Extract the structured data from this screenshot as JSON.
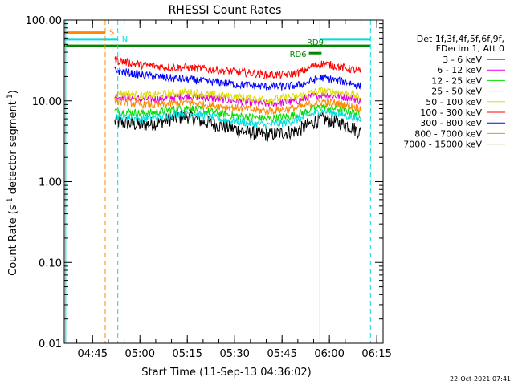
{
  "chart_data": {
    "type": "line",
    "title": "RHESSI Count Rates",
    "xlabel": "Start Time (11-Sep-13 04:36:02)",
    "ylabel_main": "Count Rate (s",
    "ylabel_sup1": "-1",
    "ylabel_mid": " detector segment",
    "ylabel_sup2": "-1",
    "ylabel_end": ")",
    "yscale": "log",
    "ylim": [
      0.01,
      100
    ],
    "xlim": [
      "04:36:02",
      "06:17:00"
    ],
    "x_ticks": [
      {
        "label": "04:45",
        "t": "04:45"
      },
      {
        "label": "05:00",
        "t": "05:00"
      },
      {
        "label": "05:15",
        "t": "05:15"
      },
      {
        "label": "05:30",
        "t": "05:30"
      },
      {
        "label": "05:45",
        "t": "05:45"
      },
      {
        "label": "06:00",
        "t": "06:00"
      },
      {
        "label": "06:15",
        "t": "06:15"
      }
    ],
    "y_ticks": [
      {
        "label": "100.00",
        "v": 100
      },
      {
        "label": "10.00",
        "v": 10
      },
      {
        "label": "1.00",
        "v": 1
      },
      {
        "label": "0.10",
        "v": 0.1
      },
      {
        "label": "0.01",
        "v": 0.01
      }
    ],
    "legend_header": [
      "Det 1f,3f,4f,5f,6f,9f,",
      "FDecim 1, Att 0"
    ],
    "legend_placement": "right",
    "series": [
      {
        "name": "3 - 6 keV",
        "color": "#000000",
        "x": [
          "04:52",
          "04:56",
          "05:00",
          "05:05",
          "05:10",
          "05:15",
          "05:20",
          "05:25",
          "05:30",
          "05:35",
          "05:40",
          "05:45",
          "05:50",
          "05:55",
          "05:58",
          "06:02",
          "06:06",
          "06:10"
        ],
        "values": [
          5.5,
          5.3,
          5.0,
          5.3,
          6.0,
          6.5,
          5.5,
          5.0,
          4.5,
          4.0,
          3.8,
          4.0,
          4.3,
          5.5,
          6.0,
          5.5,
          5.0,
          4.0
        ]
      },
      {
        "name": "6 - 12 keV",
        "color": "#dd00dd",
        "x": [
          "04:52",
          "04:56",
          "05:00",
          "05:05",
          "05:10",
          "05:15",
          "05:20",
          "05:25",
          "05:30",
          "05:35",
          "05:40",
          "05:45",
          "05:50",
          "05:55",
          "05:58",
          "06:02",
          "06:06",
          "06:10"
        ],
        "values": [
          11.5,
          11,
          10.5,
          10.5,
          11,
          11.5,
          11,
          10.5,
          10,
          9.5,
          9.2,
          9.5,
          10,
          11.5,
          12,
          11.5,
          11,
          10
        ]
      },
      {
        "name": "12 - 25 keV",
        "color": "#00dd00",
        "x": [
          "04:52",
          "04:56",
          "05:00",
          "05:05",
          "05:10",
          "05:15",
          "05:20",
          "05:25",
          "05:30",
          "05:35",
          "05:40",
          "05:45",
          "05:50",
          "05:55",
          "05:58",
          "06:02",
          "06:06",
          "06:10"
        ],
        "values": [
          7.5,
          7.3,
          7.0,
          7.2,
          7.8,
          8.2,
          7.6,
          7.0,
          6.6,
          6.3,
          6.0,
          6.3,
          6.8,
          8.0,
          8.5,
          8.0,
          7.5,
          6.8
        ]
      },
      {
        "name": "25 - 50 keV",
        "color": "#00dddd",
        "x": [
          "04:52",
          "04:56",
          "05:00",
          "05:05",
          "05:10",
          "05:15",
          "05:20",
          "05:25",
          "05:30",
          "05:35",
          "05:40",
          "05:45",
          "05:50",
          "05:55",
          "05:58",
          "06:02",
          "06:06",
          "06:10"
        ],
        "values": [
          6.5,
          6.3,
          6.0,
          6.2,
          6.8,
          7.2,
          6.6,
          6.0,
          5.6,
          5.3,
          5.0,
          5.3,
          5.8,
          7.0,
          7.5,
          7.0,
          6.5,
          5.8
        ]
      },
      {
        "name": "50 - 100 keV",
        "color": "#dddd00",
        "x": [
          "04:52",
          "04:56",
          "05:00",
          "05:05",
          "05:10",
          "05:15",
          "05:20",
          "05:25",
          "05:30",
          "05:35",
          "05:40",
          "05:45",
          "05:50",
          "05:55",
          "05:58",
          "06:02",
          "06:06",
          "06:10"
        ],
        "values": [
          12.5,
          12.2,
          11.8,
          11.8,
          12.3,
          12.8,
          12.2,
          11.6,
          11.2,
          10.8,
          10.4,
          10.8,
          11.3,
          12.8,
          13.3,
          12.8,
          12.2,
          11.2
        ]
      },
      {
        "name": "100 - 300 keV",
        "color": "#ff0000",
        "x": [
          "04:52",
          "04:56",
          "05:00",
          "05:05",
          "05:10",
          "05:15",
          "05:20",
          "05:25",
          "05:30",
          "05:35",
          "05:40",
          "05:45",
          "05:50",
          "05:55",
          "05:58",
          "06:02",
          "06:06",
          "06:10"
        ],
        "values": [
          32,
          30,
          28,
          27,
          26,
          26,
          25,
          24,
          23,
          22,
          21,
          21,
          22,
          27,
          29,
          27,
          25,
          23
        ]
      },
      {
        "name": "300 - 800 keV",
        "color": "#0000ff",
        "x": [
          "04:52",
          "04:56",
          "05:00",
          "05:05",
          "05:10",
          "05:15",
          "05:20",
          "05:25",
          "05:30",
          "05:35",
          "05:40",
          "05:45",
          "05:50",
          "05:55",
          "05:58",
          "06:02",
          "06:06",
          "06:10"
        ],
        "values": [
          24,
          22.5,
          21,
          20,
          19,
          18.5,
          17.5,
          17,
          16,
          15.5,
          15,
          15,
          15.5,
          18,
          19.5,
          18,
          17,
          15
        ]
      },
      {
        "name": "800 - 7000 keV",
        "color": "#ff8800",
        "x": [
          "04:52",
          "04:56",
          "05:00",
          "05:05",
          "05:10",
          "05:15",
          "05:20",
          "05:25",
          "05:30",
          "05:35",
          "05:40",
          "05:45",
          "05:50",
          "05:55",
          "05:58",
          "06:02",
          "06:06",
          "06:10"
        ],
        "values": [
          10,
          9.6,
          9.0,
          8.8,
          9.2,
          9.6,
          9.0,
          8.6,
          8.2,
          7.8,
          7.5,
          7.8,
          8.2,
          9.3,
          9.8,
          9.3,
          8.8,
          8.0
        ]
      },
      {
        "name": "7000 - 15000 keV",
        "color": "#aa6600",
        "x": [],
        "values": []
      }
    ],
    "overlays": [
      {
        "label": "S",
        "color": "#ff8800",
        "x_start": "04:36:02",
        "x_end": "04:49:00",
        "y": 70
      },
      {
        "label": "N",
        "color": "#00dddd",
        "x_start": "04:36:02",
        "x_end": "04:53:00",
        "y": 58
      },
      {
        "label": "",
        "color": "#00dddd",
        "x_start": "05:57:00",
        "x_end": "06:13:00",
        "y": 58
      },
      {
        "label": "",
        "color": "#008800",
        "x_start": "04:36:02",
        "x_end": "06:13:00",
        "y": 48
      },
      {
        "label": "RD6",
        "color": "#008800",
        "x_start": "05:53:30",
        "x_end": "05:57:30",
        "y": 39
      },
      {
        "label": "RD9",
        "color": "#008800",
        "x_start": "05:55:30",
        "x_end": "05:55:30",
        "y": 48
      }
    ],
    "vlines": [
      {
        "t": "04:36:30",
        "color": "#00dddd",
        "style": "solid"
      },
      {
        "t": "04:49:00",
        "color": "#ff8800",
        "style": "dashed"
      },
      {
        "t": "04:53:00",
        "color": "#00dddd",
        "style": "dashed"
      },
      {
        "t": "05:57:00",
        "color": "#00dddd",
        "style": "solid"
      },
      {
        "t": "06:13:00",
        "color": "#00dddd",
        "style": "dashed"
      }
    ]
  },
  "footer": {
    "timestamp": "22-Oct-2021 07:41"
  }
}
